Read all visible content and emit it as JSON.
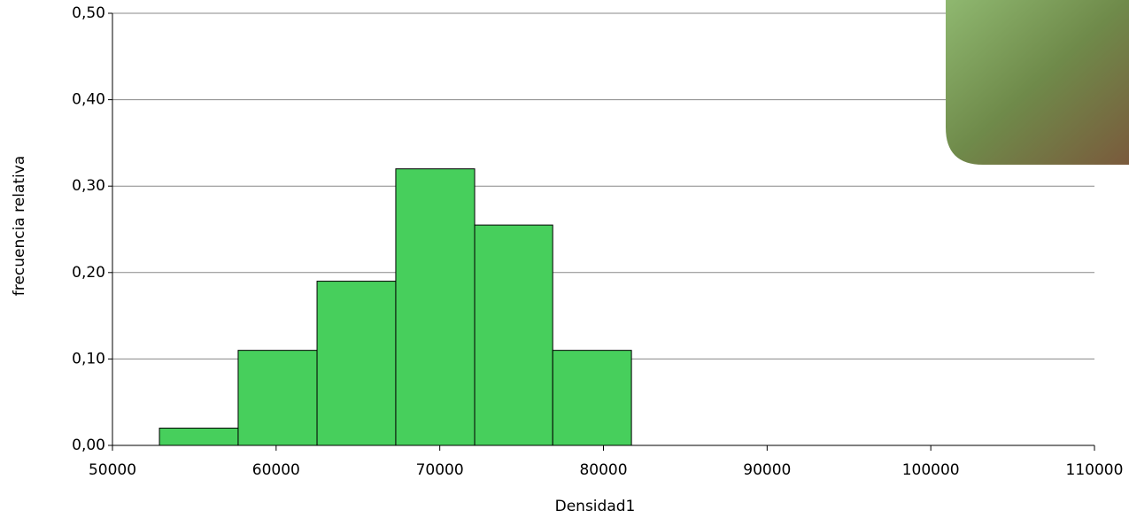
{
  "chart_data": {
    "type": "histogram",
    "x_label": "Densidad1",
    "y_label": "frecuencia relativa",
    "bins": [
      52870,
      57680,
      62500,
      67310,
      72130,
      76900,
      81710
    ],
    "values": [
      0.02,
      0.11,
      0.19,
      0.32,
      0.255,
      0.11
    ],
    "color": "#47cf5c",
    "xlim": [
      50000,
      110000
    ],
    "xticks": [
      50000,
      60000,
      70000,
      80000,
      90000,
      100000,
      110000
    ],
    "ylim": [
      0,
      0.5
    ],
    "yticks": [
      {
        "value": 0,
        "label": "0,00"
      },
      {
        "value": 0.1,
        "label": "0,10"
      },
      {
        "value": 0.2,
        "label": "0,20"
      },
      {
        "value": 0.3,
        "label": "0,30"
      },
      {
        "value": 0.4,
        "label": "0,40"
      },
      {
        "value": 0.5,
        "label": "0,50"
      }
    ],
    "grid": true
  }
}
